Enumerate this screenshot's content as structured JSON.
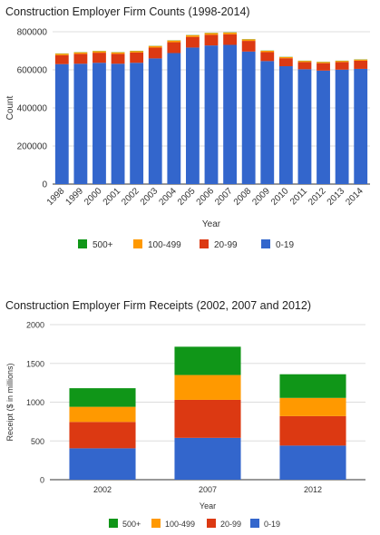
{
  "chart_data": [
    {
      "type": "bar",
      "stacked": true,
      "title": "Construction Employer Firm Counts (1998-2014)",
      "xlabel": "Year",
      "ylabel": "Count",
      "ylim": [
        0,
        800000
      ],
      "yticks": [
        "0",
        "200000",
        "400000",
        "600000",
        "800000"
      ],
      "categories": [
        "1998",
        "1999",
        "2000",
        "2001",
        "2002",
        "2003",
        "2004",
        "2005",
        "2006",
        "2007",
        "2008",
        "2009",
        "2010",
        "2011",
        "2012",
        "2013",
        "2014"
      ],
      "series": [
        {
          "name": "0-19",
          "color": "#3366cc",
          "values": [
            630000,
            632000,
            637000,
            632000,
            637000,
            660000,
            688000,
            717000,
            728000,
            731000,
            696000,
            646000,
            619000,
            603000,
            596000,
            601000,
            605000
          ]
        },
        {
          "name": "20-99",
          "color": "#dc3912",
          "values": [
            47000,
            52000,
            53000,
            52000,
            54000,
            57000,
            57000,
            56000,
            56000,
            56000,
            56000,
            47000,
            42000,
            38000,
            39000,
            40000,
            43000
          ]
        },
        {
          "name": "100-499",
          "color": "#ff9900",
          "values": [
            8000,
            8000,
            8000,
            8000,
            8000,
            8000,
            9000,
            9000,
            9000,
            9000,
            8000,
            7000,
            6000,
            6000,
            6000,
            6000,
            6000
          ]
        },
        {
          "name": "500+",
          "color": "#109618",
          "values": [
            1000,
            1000,
            1000,
            1000,
            1000,
            1000,
            1000,
            1000,
            1000,
            1000,
            1000,
            1000,
            1000,
            1000,
            1000,
            1000,
            1000
          ]
        }
      ],
      "legend_order": [
        "500+",
        "100-499",
        "20-99",
        "0-19"
      ],
      "legend_position": "bottom",
      "grid": true
    },
    {
      "type": "bar",
      "stacked": true,
      "title": "Construction Employer Firm Receipts (2002, 2007 and 2012)",
      "xlabel": "Year",
      "ylabel": "Receipt ($ in millions)",
      "ylim": [
        0,
        2000
      ],
      "yticks": [
        "0",
        "500",
        "1000",
        "1500",
        "2000"
      ],
      "categories": [
        "2002",
        "2007",
        "2012"
      ],
      "series": [
        {
          "name": "0-19",
          "color": "#3366cc",
          "values": [
            405,
            540,
            440
          ]
        },
        {
          "name": "20-99",
          "color": "#dc3912",
          "values": [
            340,
            490,
            380
          ]
        },
        {
          "name": "100-499",
          "color": "#ff9900",
          "values": [
            195,
            320,
            235
          ]
        },
        {
          "name": "500+",
          "color": "#109618",
          "values": [
            240,
            365,
            305
          ]
        }
      ],
      "legend_order": [
        "500+",
        "100-499",
        "20-99",
        "0-19"
      ],
      "legend_position": "bottom",
      "grid": true
    }
  ]
}
